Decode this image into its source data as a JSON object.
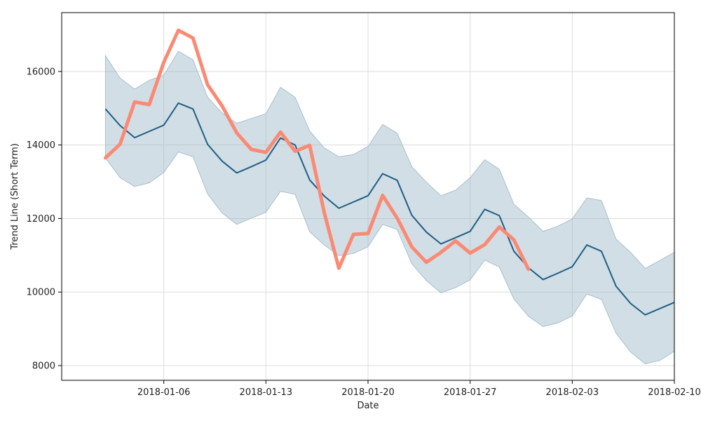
{
  "chart_data": {
    "type": "line",
    "xlabel": "Date",
    "ylabel": "Trend Line (Short Term)",
    "x_start": "2018-01-02",
    "x_step_days": 1,
    "xlim": [
      "2017-12-30",
      "2018-02-10"
    ],
    "ylim": [
      7600,
      17600
    ],
    "x_ticks": [
      "2018-01-06",
      "2018-01-13",
      "2018-01-20",
      "2018-01-27",
      "2018-02-03",
      "2018-02-10"
    ],
    "y_ticks": [
      8000,
      10000,
      12000,
      14000,
      16000
    ],
    "grid": true,
    "series": [
      {
        "role": "band",
        "color": "#9ab5c6",
        "opacity": 0.45,
        "upper": [
          16430,
          15820,
          15520,
          15760,
          15900,
          16550,
          16320,
          15300,
          14870,
          14590,
          14720,
          14850,
          15570,
          15300,
          14380,
          13920,
          13680,
          13740,
          13960,
          14560,
          14320,
          13410,
          12990,
          12620,
          12770,
          13110,
          13600,
          13340,
          12390,
          12040,
          11650,
          11790,
          11990,
          12560,
          12490,
          11440,
          11080,
          10640,
          10860,
          11080
        ],
        "lower": [
          13650,
          13110,
          12870,
          12970,
          13250,
          13810,
          13680,
          12670,
          12150,
          11840,
          12010,
          12170,
          12740,
          12660,
          11640,
          11280,
          10990,
          11050,
          11230,
          11840,
          11700,
          10770,
          10310,
          9980,
          10120,
          10330,
          10870,
          10680,
          9810,
          9340,
          9060,
          9160,
          9350,
          9950,
          9800,
          8880,
          8370,
          8050,
          8140,
          8390
        ]
      },
      {
        "role": "trend",
        "color": "#1f5f85",
        "values": [
          14980,
          14530,
          14200,
          14370,
          14540,
          15140,
          14980,
          14020,
          13560,
          13240,
          13410,
          13590,
          14190,
          14000,
          13050,
          12610,
          12280,
          12450,
          12620,
          13220,
          13040,
          12090,
          11630,
          11310,
          11480,
          11650,
          12250,
          12080,
          11110,
          10660,
          10340,
          10510,
          10690,
          11280,
          11110,
          10160,
          9690,
          9380,
          9550,
          9720
        ]
      },
      {
        "role": "actual",
        "color": "#fa8a73",
        "values": [
          13650,
          14020,
          15170,
          15100,
          16250,
          17120,
          16910,
          15640,
          15060,
          14330,
          13880,
          13800,
          14350,
          13830,
          13990,
          12160,
          10650,
          11570,
          11590,
          12630,
          12010,
          11230,
          10810,
          11080,
          11390,
          11060,
          11290,
          11770,
          11420,
          10620
        ]
      }
    ]
  }
}
